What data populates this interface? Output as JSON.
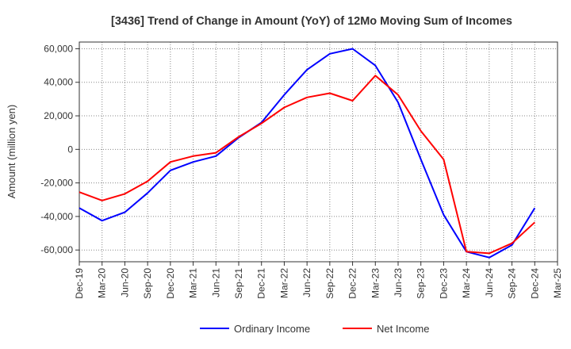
{
  "chart_data": {
    "type": "line",
    "title": "[3436]  Trend of Change in Amount (YoY) of 12Mo Moving Sum of Incomes",
    "xlabel": "",
    "ylabel": "Amount (million yen)",
    "ylim": [
      -67000,
      64000
    ],
    "yticks": [
      60000,
      40000,
      20000,
      0,
      -20000,
      -40000,
      -60000
    ],
    "ytick_labels": [
      "60,000",
      "40,000",
      "20,000",
      "0",
      "-20,000",
      "-40,000",
      "-60,000"
    ],
    "categories": [
      "Dec-19",
      "Mar-20",
      "Jun-20",
      "Sep-20",
      "Dec-20",
      "Mar-21",
      "Jun-21",
      "Sep-21",
      "Dec-21",
      "Mar-22",
      "Jun-22",
      "Sep-22",
      "Dec-22",
      "Mar-23",
      "Jun-23",
      "Sep-23",
      "Dec-23",
      "Mar-24",
      "Jun-24",
      "Sep-24",
      "Dec-24",
      "Mar-25"
    ],
    "grid": true,
    "legend_position": "bottom-center",
    "series": [
      {
        "name": "Ordinary Income",
        "color": "#0000ff",
        "values": [
          -35000,
          -42500,
          -37500,
          -26000,
          -12500,
          -7500,
          -4000,
          7000,
          16000,
          32500,
          47500,
          57000,
          60000,
          50000,
          28000,
          -6000,
          -39000,
          -61000,
          -64500,
          -57000,
          -35000,
          null
        ]
      },
      {
        "name": "Net Income",
        "color": "#ff0000",
        "values": [
          -25500,
          -30500,
          -26500,
          -19000,
          -7500,
          -4000,
          -2000,
          7500,
          15500,
          25000,
          31000,
          33500,
          29000,
          44000,
          32500,
          11000,
          -6000,
          -61000,
          -62000,
          -56000,
          -43500,
          null
        ]
      }
    ]
  }
}
